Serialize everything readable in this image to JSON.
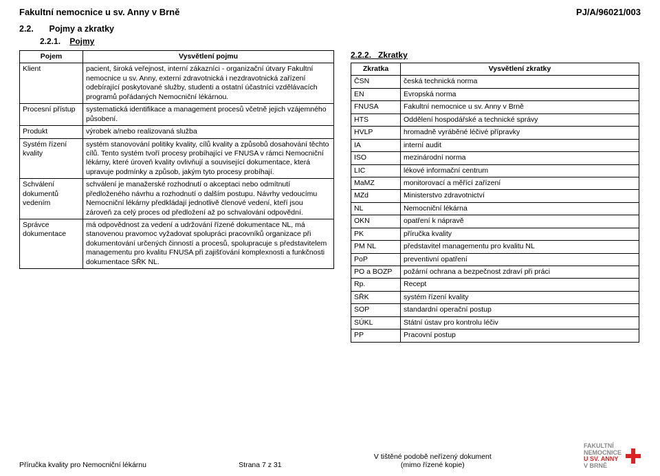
{
  "header": {
    "left": "Fakultní nemocnice u sv. Anny v Brně",
    "right": "PJ/A/96021/003"
  },
  "sec22": {
    "num": "2.2.",
    "title": "Pojmy a zkratky"
  },
  "sec221": {
    "num": "2.2.1.",
    "title": "Pojmy"
  },
  "sec222": {
    "num": "2.2.2.",
    "title": "Zkratky"
  },
  "table1": {
    "head": {
      "c1": "Pojem",
      "c2": "Vysvětlení pojmu"
    },
    "rows": [
      {
        "c1": "Klient",
        "c2": "pacient, široká veřejnost, interní zákazníci - organizační útvary Fakultní nemocnice u sv. Anny, externí zdravotnická i nezdravotnická zařízení odebírající poskytované služby, studenti a ostatní účastníci vzdělávacích programů pořádaných Nemocniční lékárnou."
      },
      {
        "c1": "Procesní přístup",
        "c2": "systematická identifikace a management procesů včetně jejich vzájemného působení."
      },
      {
        "c1": "Produkt",
        "c2": "výrobek a/nebo realizovaná služba"
      },
      {
        "c1": "Systém řízení kvality",
        "c2": "systém stanovování politiky kvality, cílů kvality a způsobů dosahování těchto cílů. Tento systém tvoří procesy probíhající ve FNUSA v rámci Nemocniční lékárny, které úroveň kvality ovlivňují a související dokumentace, která upravuje podmínky a způsob, jakým tyto procesy probíhají."
      },
      {
        "c1": "Schválení dokumentů vedením",
        "c2": "schválení je manažerské rozhodnutí o akceptaci nebo odmítnutí předloženého návrhu a rozhodnutí o dalším postupu. Návrhy vedoucímu Nemocniční lékárny předkládají jednotlivě členové vedení, kteří jsou zároveň za celý proces od předložení až po schvalování odpovědní."
      },
      {
        "c1": "Správce dokumentace",
        "c2": "má odpovědnost za vedení a udržování řízené dokumentace NL, má stanovenou pravomoc vyžadovat spolupráci pracovníků organizace při dokumentování určených činností a procesů, spolupracuje s představitelem managementu pro kvalitu FNUSA při zajišťování komplexnosti a funkčnosti dokumentace SŘK NL."
      }
    ]
  },
  "table2": {
    "head": {
      "c1": "Zkratka",
      "c2": "Vysvětlení zkratky"
    },
    "rows": [
      {
        "c1": "ČSN",
        "c2": "česká technická norma"
      },
      {
        "c1": "EN",
        "c2": "Evropská norma"
      },
      {
        "c1": "FNUSA",
        "c2": "Fakultní nemocnice u sv. Anny v Brně"
      },
      {
        "c1": "HTS",
        "c2": "Oddělení hospodářské a technické správy"
      },
      {
        "c1": "HVLP",
        "c2": "hromadně vyráběné léčivé přípravky"
      },
      {
        "c1": "IA",
        "c2": "interní audit"
      },
      {
        "c1": "ISO",
        "c2": "mezinárodní norma"
      },
      {
        "c1": "LIC",
        "c2": "lékové informační centrum"
      },
      {
        "c1": "MaMZ",
        "c2": "monitorovací a měřící zařízení"
      },
      {
        "c1": "MZd",
        "c2": "Ministerstvo zdravotnictví"
      },
      {
        "c1": "NL",
        "c2": "Nemocniční lékárna"
      },
      {
        "c1": "OKN",
        "c2": "opatření k nápravě"
      },
      {
        "c1": "PK",
        "c2": "příručka kvality"
      },
      {
        "c1": "PM NL",
        "c2": "představitel managementu pro kvalitu NL"
      },
      {
        "c1": "PoP",
        "c2": "preventivní opatření"
      },
      {
        "c1": "PO a BOZP",
        "c2": "požární ochrana a bezpečnost zdraví při práci"
      },
      {
        "c1": "Rp.",
        "c2": "Recept"
      },
      {
        "c1": "SŘK",
        "c2": "systém řízení kvality"
      },
      {
        "c1": "SOP",
        "c2": "standardní operační postup"
      },
      {
        "c1": "SÚKL",
        "c2": "Státní ústav pro kontrolu léčiv"
      },
      {
        "c1": "PP",
        "c2": "Pracovní postup"
      }
    ]
  },
  "footer": {
    "left": "Příručka kvality pro Nemocniční lékárnu",
    "mid_top": "Strana 7 z 31",
    "right_top": "V tištěné podobě neřízený dokument",
    "right_bottom": "(mimo řízené kopie)",
    "logo": {
      "l1": "FAKULTNÍ",
      "l2": "NEMOCNICE",
      "l3": "U SV. ANNY",
      "l4": "V BRNĚ"
    }
  },
  "widths": {
    "t1c1": "92px",
    "t1c2": "auto",
    "t2c1": "72px",
    "t2c2": "auto"
  }
}
